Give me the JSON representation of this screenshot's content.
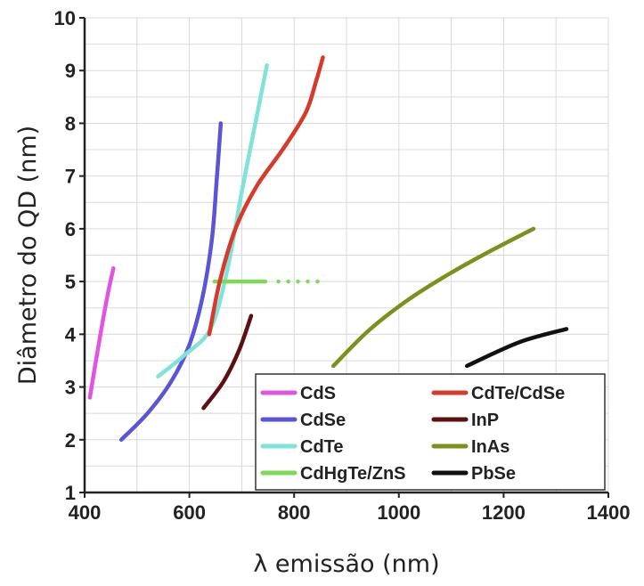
{
  "chart_data": {
    "type": "line",
    "xlabel": "λ emissão (nm)",
    "ylabel": "Diâmetro do QD (nm)",
    "xlim": [
      400,
      1400
    ],
    "ylim": [
      1,
      10
    ],
    "xticks": [
      400,
      600,
      800,
      1000,
      1200,
      1400
    ],
    "yticks": [
      1,
      2,
      3,
      4,
      5,
      6,
      7,
      8,
      9,
      10
    ],
    "grid": true,
    "legend_position": "bottom-right",
    "series": [
      {
        "name": "CdS",
        "color": "#e055e0",
        "style": "solid",
        "points": [
          [
            410,
            2.8
          ],
          [
            420,
            3.4
          ],
          [
            432,
            4.1
          ],
          [
            445,
            4.8
          ],
          [
            455,
            5.25
          ]
        ]
      },
      {
        "name": "CdSe",
        "color": "#5a55d6",
        "style": "solid",
        "points": [
          [
            470,
            2.0
          ],
          [
            520,
            2.5
          ],
          [
            565,
            3.1
          ],
          [
            600,
            3.8
          ],
          [
            625,
            4.7
          ],
          [
            643,
            5.8
          ],
          [
            652,
            6.9
          ],
          [
            660,
            8.0
          ]
        ]
      },
      {
        "name": "CdTe",
        "color": "#7fe3d8",
        "style": "solid",
        "points": [
          [
            540,
            3.2
          ],
          [
            590,
            3.6
          ],
          [
            640,
            4.1
          ],
          [
            672,
            5.2
          ],
          [
            700,
            6.7
          ],
          [
            728,
            8.1
          ],
          [
            748,
            9.1
          ]
        ]
      },
      {
        "name": "CdHgTe/ZnS",
        "color": "#7ed957",
        "style": "solid",
        "points": [
          [
            648,
            5.0
          ],
          [
            745,
            5.0
          ]
        ]
      },
      {
        "name": "CdHgTe/ZnS",
        "color": "#7ed957",
        "style": "dotted",
        "legend": false,
        "points": [
          [
            770,
            5.0
          ],
          [
            855,
            5.0
          ]
        ]
      },
      {
        "name": "CdTe/CdSe",
        "color": "#d63a2a",
        "style": "solid",
        "points": [
          [
            638,
            4.0
          ],
          [
            658,
            5.0
          ],
          [
            688,
            6.0
          ],
          [
            728,
            6.8
          ],
          [
            778,
            7.5
          ],
          [
            822,
            8.2
          ],
          [
            842,
            8.8
          ],
          [
            855,
            9.25
          ]
        ]
      },
      {
        "name": "InP",
        "color": "#5c1010",
        "style": "solid",
        "points": [
          [
            627,
            2.6
          ],
          [
            665,
            3.1
          ],
          [
            695,
            3.7
          ],
          [
            718,
            4.35
          ]
        ]
      },
      {
        "name": "InAs",
        "color": "#7e8f1c",
        "style": "solid",
        "points": [
          [
            875,
            3.4
          ],
          [
            940,
            4.05
          ],
          [
            1010,
            4.6
          ],
          [
            1080,
            5.05
          ],
          [
            1160,
            5.5
          ],
          [
            1257,
            6.0
          ]
        ]
      },
      {
        "name": "PbSe",
        "color": "#111111",
        "style": "solid",
        "points": [
          [
            1130,
            3.4
          ],
          [
            1230,
            3.85
          ],
          [
            1320,
            4.1
          ]
        ]
      }
    ],
    "legend": [
      {
        "name": "CdS",
        "color": "#e055e0"
      },
      {
        "name": "CdTe/CdSe",
        "color": "#d63a2a"
      },
      {
        "name": "CdSe",
        "color": "#5a55d6"
      },
      {
        "name": "InP",
        "color": "#5c1010"
      },
      {
        "name": "CdTe",
        "color": "#7fe3d8"
      },
      {
        "name": "InAs",
        "color": "#7e8f1c"
      },
      {
        "name": "CdHgTe/ZnS",
        "color": "#7ed957"
      },
      {
        "name": "PbSe",
        "color": "#111111"
      }
    ]
  }
}
